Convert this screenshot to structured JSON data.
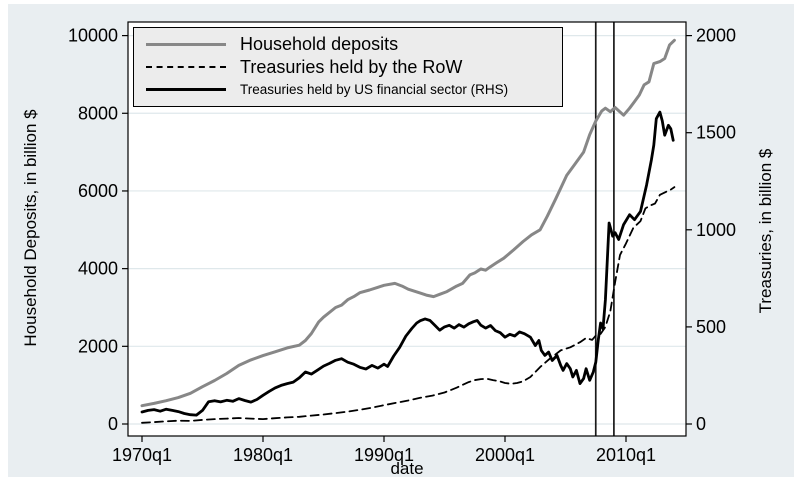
{
  "figure": {
    "field_background": "#e9eef1",
    "plot_background": "#ffffff",
    "grid_color": "#dfe8eb",
    "axis_color": "#000000",
    "legend_background": "#ececec",
    "vline_color": "#1a1a1a"
  },
  "chart_data": {
    "type": "line",
    "title": "",
    "xlabel": "date",
    "ylabel_left": "Household Deposits, in billion $",
    "ylabel_right": "Treasuries, in billion $",
    "x_ticks": [
      {
        "value": 1970,
        "label": "1970q1"
      },
      {
        "value": 1980,
        "label": "1980q1"
      },
      {
        "value": 1990,
        "label": "1990q1"
      },
      {
        "value": 2000,
        "label": "2000q1"
      },
      {
        "value": 2010,
        "label": "2010q1"
      }
    ],
    "left_axis": {
      "range": [
        0,
        10000
      ],
      "ticks": [
        0,
        2000,
        4000,
        6000,
        8000,
        10000
      ]
    },
    "right_axis": {
      "range": [
        0,
        2000
      ],
      "ticks": [
        0,
        500,
        1000,
        1500,
        2000
      ]
    },
    "vertical_lines": [
      2007.5,
      2009.0
    ],
    "grid": "horizontal",
    "legend_position": "top-left-inside",
    "series": [
      {
        "name": "Household deposits",
        "axis": "left",
        "style": "solid",
        "color": "#878787",
        "width": 3,
        "points": [
          [
            1970,
            470
          ],
          [
            1971,
            530
          ],
          [
            1972,
            600
          ],
          [
            1973,
            680
          ],
          [
            1974,
            790
          ],
          [
            1975,
            960
          ],
          [
            1976,
            1120
          ],
          [
            1977,
            1300
          ],
          [
            1978,
            1510
          ],
          [
            1979,
            1650
          ],
          [
            1980,
            1760
          ],
          [
            1981,
            1860
          ],
          [
            1982,
            1960
          ],
          [
            1983,
            2030
          ],
          [
            1983.5,
            2150
          ],
          [
            1984,
            2330
          ],
          [
            1984.6,
            2630
          ],
          [
            1985,
            2750
          ],
          [
            1986,
            3000
          ],
          [
            1986.5,
            3060
          ],
          [
            1987,
            3200
          ],
          [
            1987.5,
            3280
          ],
          [
            1988,
            3380
          ],
          [
            1988.8,
            3450
          ],
          [
            1989.5,
            3520
          ],
          [
            1990,
            3570
          ],
          [
            1990.9,
            3620
          ],
          [
            1991.5,
            3550
          ],
          [
            1992,
            3470
          ],
          [
            1993,
            3370
          ],
          [
            1993.5,
            3320
          ],
          [
            1994.1,
            3280
          ],
          [
            1994.6,
            3340
          ],
          [
            1995.2,
            3410
          ],
          [
            1996,
            3550
          ],
          [
            1996.5,
            3620
          ],
          [
            1997.1,
            3840
          ],
          [
            1997.5,
            3890
          ],
          [
            1998,
            3990
          ],
          [
            1998.4,
            3960
          ],
          [
            1998.8,
            4050
          ],
          [
            1999.3,
            4150
          ],
          [
            1999.9,
            4270
          ],
          [
            2000.7,
            4480
          ],
          [
            2001.5,
            4700
          ],
          [
            2002.2,
            4870
          ],
          [
            2002.9,
            5000
          ],
          [
            2003.5,
            5350
          ],
          [
            2004.2,
            5800
          ],
          [
            2005.1,
            6400
          ],
          [
            2005.8,
            6700
          ],
          [
            2006.5,
            7000
          ],
          [
            2007,
            7450
          ],
          [
            2007.5,
            7800
          ],
          [
            2008,
            8060
          ],
          [
            2008.3,
            8130
          ],
          [
            2008.7,
            8040
          ],
          [
            2009.1,
            8150
          ],
          [
            2009.8,
            7950
          ],
          [
            2010.3,
            8130
          ],
          [
            2010.7,
            8300
          ],
          [
            2011.1,
            8470
          ],
          [
            2011.5,
            8730
          ],
          [
            2011.9,
            8810
          ],
          [
            2012.3,
            9280
          ],
          [
            2012.8,
            9330
          ],
          [
            2013.2,
            9410
          ],
          [
            2013.6,
            9760
          ],
          [
            2014,
            9880
          ]
        ]
      },
      {
        "name": "Treasuries held by the RoW",
        "axis": "right",
        "style": "dashed",
        "color": "#000000",
        "width": 1.8,
        "points": [
          [
            1970,
            6
          ],
          [
            1971,
            10
          ],
          [
            1972,
            14
          ],
          [
            1973,
            17
          ],
          [
            1974,
            16
          ],
          [
            1975,
            21
          ],
          [
            1976,
            25
          ],
          [
            1977,
            28
          ],
          [
            1978,
            31
          ],
          [
            1979,
            28
          ],
          [
            1980,
            25
          ],
          [
            1981,
            30
          ],
          [
            1982,
            34
          ],
          [
            1983,
            37
          ],
          [
            1984,
            43
          ],
          [
            1985,
            49
          ],
          [
            1986,
            56
          ],
          [
            1987,
            64
          ],
          [
            1988,
            73
          ],
          [
            1989,
            84
          ],
          [
            1990,
            97
          ],
          [
            1991,
            109
          ],
          [
            1992,
            121
          ],
          [
            1993,
            135
          ],
          [
            1994,
            146
          ],
          [
            1995,
            162
          ],
          [
            1996,
            187
          ],
          [
            1997,
            216
          ],
          [
            1997.5,
            226
          ],
          [
            1998,
            231
          ],
          [
            1998.5,
            233
          ],
          [
            1999,
            226
          ],
          [
            1999.5,
            221
          ],
          [
            2000,
            211
          ],
          [
            2000.5,
            207
          ],
          [
            2001,
            211
          ],
          [
            2001.5,
            220
          ],
          [
            2002.1,
            242
          ],
          [
            2002.9,
            293
          ],
          [
            2003.7,
            336
          ],
          [
            2004.6,
            379
          ],
          [
            2005.4,
            395
          ],
          [
            2006.2,
            421
          ],
          [
            2006.7,
            443
          ],
          [
            2007.2,
            433
          ],
          [
            2007.5,
            455
          ],
          [
            2007.9,
            464
          ],
          [
            2008.3,
            500
          ],
          [
            2008.7,
            580
          ],
          [
            2009.1,
            730
          ],
          [
            2009.5,
            870
          ],
          [
            2010,
            930
          ],
          [
            2010.6,
            1010
          ],
          [
            2011.2,
            1045
          ],
          [
            2011.6,
            1110
          ],
          [
            2012,
            1125
          ],
          [
            2012.4,
            1135
          ],
          [
            2012.8,
            1180
          ],
          [
            2013.3,
            1195
          ],
          [
            2013.7,
            1207
          ],
          [
            2014,
            1220
          ]
        ]
      },
      {
        "name": "Treasuries held by US financial sector (RHS)",
        "axis": "right",
        "style": "solid",
        "color": "#000000",
        "width": 2.8,
        "points": [
          [
            1970,
            62
          ],
          [
            1970.5,
            70
          ],
          [
            1971,
            74
          ],
          [
            1971.5,
            66
          ],
          [
            1972,
            76
          ],
          [
            1972.5,
            70
          ],
          [
            1973,
            64
          ],
          [
            1973.5,
            54
          ],
          [
            1974,
            48
          ],
          [
            1974.5,
            46
          ],
          [
            1975,
            70
          ],
          [
            1975.5,
            115
          ],
          [
            1976,
            120
          ],
          [
            1976.5,
            114
          ],
          [
            1977,
            122
          ],
          [
            1977.5,
            117
          ],
          [
            1978,
            131
          ],
          [
            1978.5,
            121
          ],
          [
            1979,
            113
          ],
          [
            1979.5,
            126
          ],
          [
            1980,
            148
          ],
          [
            1980.5,
            168
          ],
          [
            1981,
            186
          ],
          [
            1981.5,
            199
          ],
          [
            1982,
            208
          ],
          [
            1982.5,
            216
          ],
          [
            1983,
            238
          ],
          [
            1983.5,
            268
          ],
          [
            1984,
            257
          ],
          [
            1984.5,
            277
          ],
          [
            1985,
            298
          ],
          [
            1985.5,
            312
          ],
          [
            1986,
            328
          ],
          [
            1986.5,
            336
          ],
          [
            1987,
            318
          ],
          [
            1987.5,
            308
          ],
          [
            1988,
            292
          ],
          [
            1988.5,
            283
          ],
          [
            1989,
            302
          ],
          [
            1989.5,
            288
          ],
          [
            1990,
            308
          ],
          [
            1990.3,
            296
          ],
          [
            1990.8,
            350
          ],
          [
            1991.3,
            395
          ],
          [
            1991.8,
            452
          ],
          [
            1992.3,
            492
          ],
          [
            1992.7,
            520
          ],
          [
            1993,
            532
          ],
          [
            1993.4,
            541
          ],
          [
            1993.8,
            533
          ],
          [
            1994.2,
            509
          ],
          [
            1994.6,
            483
          ],
          [
            1995,
            500
          ],
          [
            1995.4,
            508
          ],
          [
            1995.8,
            494
          ],
          [
            1996.2,
            512
          ],
          [
            1996.6,
            499
          ],
          [
            1997,
            516
          ],
          [
            1997.4,
            527
          ],
          [
            1997.7,
            533
          ],
          [
            1998,
            509
          ],
          [
            1998.4,
            494
          ],
          [
            1998.8,
            507
          ],
          [
            1999.2,
            481
          ],
          [
            1999.6,
            470
          ],
          [
            2000,
            447
          ],
          [
            2000.4,
            462
          ],
          [
            2000.8,
            453
          ],
          [
            2001.2,
            474
          ],
          [
            2001.6,
            465
          ],
          [
            2002.1,
            447
          ],
          [
            2002.5,
            404
          ],
          [
            2002.8,
            430
          ],
          [
            2003,
            379
          ],
          [
            2003.3,
            353
          ],
          [
            2003.6,
            370
          ],
          [
            2003.9,
            327
          ],
          [
            2004.3,
            353
          ],
          [
            2004.6,
            302
          ],
          [
            2004.8,
            276
          ],
          [
            2005.1,
            311
          ],
          [
            2005.4,
            285
          ],
          [
            2005.6,
            242
          ],
          [
            2005.9,
            276
          ],
          [
            2006.2,
            208
          ],
          [
            2006.5,
            234
          ],
          [
            2006.7,
            285
          ],
          [
            2007,
            225
          ],
          [
            2007.3,
            268
          ],
          [
            2007.5,
            319
          ],
          [
            2007.7,
            430
          ],
          [
            2007.9,
            520
          ],
          [
            2008.1,
            490
          ],
          [
            2008.3,
            640
          ],
          [
            2008.6,
            1035
          ],
          [
            2008.9,
            967
          ],
          [
            2009.1,
            985
          ],
          [
            2009.4,
            950
          ],
          [
            2009.8,
            1027
          ],
          [
            2010.3,
            1078
          ],
          [
            2010.7,
            1052
          ],
          [
            2011.2,
            1095
          ],
          [
            2011.7,
            1231
          ],
          [
            2012.1,
            1360
          ],
          [
            2012.3,
            1436
          ],
          [
            2012.5,
            1572
          ],
          [
            2012.8,
            1606
          ],
          [
            2013,
            1560
          ],
          [
            2013.2,
            1487
          ],
          [
            2013.5,
            1538
          ],
          [
            2013.7,
            1520
          ],
          [
            2013.9,
            1461
          ]
        ]
      }
    ]
  },
  "legend": {
    "entries": [
      "Household deposits",
      "Treasuries held by the RoW",
      "Treasuries held by US financial sector (RHS)"
    ]
  }
}
